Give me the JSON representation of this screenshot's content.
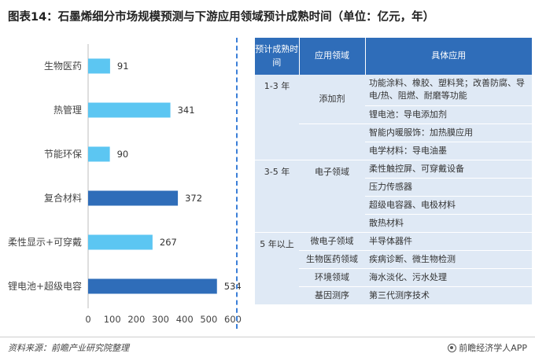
{
  "title": "图表14：石墨烯细分市场规模预测与下游应用领域预计成熟时间（单位：亿元，年）",
  "chart_data": {
    "type": "bar",
    "orientation": "horizontal",
    "title": "",
    "xlabel": "",
    "ylabel": "",
    "categories": [
      "生物医药",
      "热管理",
      "节能环保",
      "复合材料",
      "柔性显示+可穿戴",
      "锂电池+超级电容"
    ],
    "values": [
      91,
      341,
      90,
      372,
      267,
      534
    ],
    "bar_colors": [
      "#5cc6f2",
      "#5cc6f2",
      "#5cc6f2",
      "#2f6db9",
      "#5cc6f2",
      "#2f6db9"
    ],
    "xlim": [
      0,
      600
    ],
    "xticks": [
      0,
      100,
      200,
      300,
      400,
      500,
      600
    ],
    "grid": false,
    "legend": "none"
  },
  "table": {
    "headers": [
      "预计成熟时间",
      "应用领域",
      "具体应用"
    ],
    "rows": [
      {
        "period": "1-3 年",
        "field": "添加剂",
        "app": "功能涂料、橡胶、塑料凳；改善防腐、导电/热、阻燃、耐磨等功能",
        "pspan": 5,
        "fspan": 2,
        "tall": true
      },
      {
        "period": null,
        "field": null,
        "app": "锂电池：导电添加剂"
      },
      {
        "period": null,
        "field": "",
        "app": "智能内暖服饰：加热膜应用",
        "fspan": 2
      },
      {
        "period": null,
        "field": null,
        "app": "电学材料：导电油墨"
      },
      {
        "period": null,
        "field": null,
        "app": null,
        "skip": true
      },
      {
        "period": "3-5 年",
        "field": "电子领域",
        "app": "柔性触控屏、可穿戴设备",
        "pspan": 4,
        "fspan": 4
      },
      {
        "period": null,
        "field": null,
        "app": "压力传感器"
      },
      {
        "period": null,
        "field": null,
        "app": "超级电容器、电极材料"
      },
      {
        "period": null,
        "field": null,
        "app": "散热材料"
      },
      {
        "period": "5 年以上",
        "field": "微电子领域",
        "app": "半导体器件",
        "pspan": 4,
        "fspan": 1
      },
      {
        "period": null,
        "field": "生物医药领域",
        "app": "疾病诊断、微生物检测",
        "fspan": 1
      },
      {
        "period": null,
        "field": "环境领域",
        "app": "海水淡化、污水处理",
        "fspan": 1
      },
      {
        "period": null,
        "field": "基因测序",
        "app": "第三代测序技术",
        "fspan": 1
      }
    ]
  },
  "footer": {
    "source": "资料来源：前瞻产业研究院整理",
    "brand": "前瞻经济学人APP"
  }
}
